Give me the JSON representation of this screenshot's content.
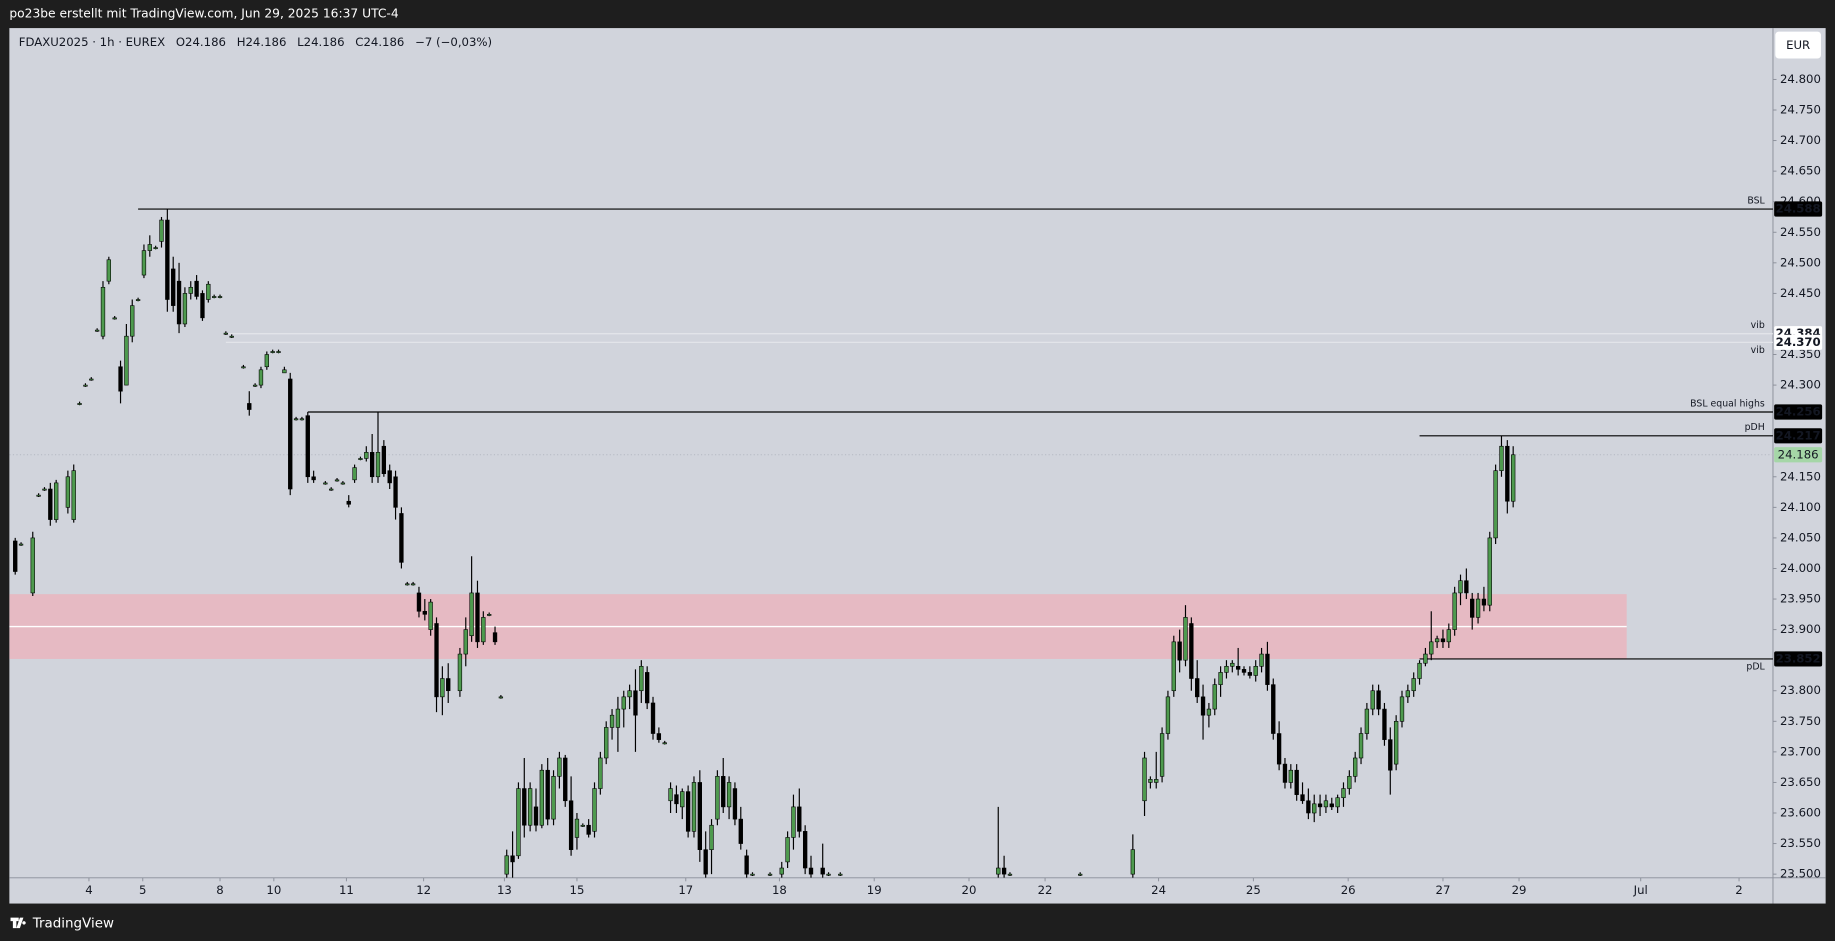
{
  "top_bar": {
    "text": "po23be erstellt mit TradingView.com, Jun 29, 2025 16:37 UTC-4"
  },
  "footer": {
    "brand": "TradingView"
  },
  "currency": "EUR",
  "chart_data": {
    "type": "candlestick",
    "symbol": "FDAXU2025 · 1h · EUREX",
    "ohlc": [
      "O24.186",
      "H24.186",
      "L24.186",
      "C24.186"
    ],
    "change": "−7 (−0,03%)",
    "up_color": "#4e9a4e",
    "down_color": "#000000",
    "wick_color": "#000000",
    "background": "#d1d4dc",
    "grid": false,
    "x": [
      1,
      2,
      4,
      5,
      6,
      7,
      8,
      10,
      11,
      12,
      13,
      14,
      15,
      16,
      17,
      18,
      19,
      20,
      21,
      22,
      23,
      24,
      25,
      26,
      27,
      28,
      29,
      30,
      31,
      32,
      33,
      34,
      35,
      36,
      37,
      38,
      40,
      41,
      42,
      43,
      44,
      45,
      46,
      47,
      48,
      49,
      50,
      51,
      52,
      54,
      55,
      56,
      57,
      58,
      59,
      60,
      61,
      62,
      63,
      64,
      65,
      66,
      67,
      68,
      69,
      70,
      71,
      72,
      73,
      74,
      75,
      77,
      78,
      79,
      80,
      81,
      82,
      83,
      84,
      85,
      86,
      87,
      88,
      89,
      90,
      91,
      92,
      93,
      94,
      95,
      96,
      97,
      98,
      99,
      100,
      101,
      102,
      103,
      104,
      105,
      106,
      107,
      108,
      109,
      110,
      111,
      112,
      113,
      114,
      115,
      116,
      117,
      118,
      119,
      120,
      121,
      122,
      123,
      124,
      125,
      126,
      127,
      130,
      132,
      133,
      134,
      135,
      136,
      137,
      139,
      140,
      142,
      169,
      170,
      171,
      183,
      192,
      194,
      195,
      196,
      197,
      198,
      199,
      200,
      201,
      202,
      203,
      204,
      205,
      206,
      207,
      208,
      209,
      210,
      211,
      212,
      213,
      214,
      215,
      216,
      217,
      218,
      219,
      220,
      221,
      222,
      223,
      224,
      225,
      226,
      227,
      228,
      229,
      230,
      231,
      232,
      233,
      234,
      235,
      236,
      237,
      238,
      239,
      240,
      241,
      242,
      243,
      244,
      245,
      246,
      247,
      248,
      249,
      250,
      251,
      252,
      253,
      254,
      255,
      256,
      257
    ],
    "open": [
      24045,
      24040,
      23960,
      24120,
      24130,
      24130,
      24080,
      24100,
      24080,
      24270,
      24300,
      24310,
      24390,
      24380,
      24470,
      24410,
      24330,
      24300,
      24380,
      24440,
      24480,
      24520,
      24525,
      24535,
      24570,
      24490,
      24470,
      24400,
      24450,
      24470,
      24450,
      24440,
      24445,
      24445,
      24385,
      24380,
      24330,
      24270,
      24300,
      24300,
      24330,
      24355,
      24355,
      24320,
      24310,
      24245,
      24245,
      24250,
      24150,
      24140,
      24130,
      24145,
      24140,
      24110,
      24145,
      24180,
      24180,
      24190,
      24150,
      24200,
      24160,
      24150,
      24090,
      23975,
      23975,
      23960,
      23930,
      23900,
      23910,
      23790,
      23820,
      23800,
      23860,
      23890,
      23960,
      23880,
      23925,
      23895,
      23790,
      23500,
      23530,
      23530,
      23640,
      23580,
      23610,
      23580,
      23670,
      23590,
      23660,
      23690,
      23620,
      23560,
      23580,
      23580,
      23570,
      23640,
      23690,
      23740,
      23740,
      23770,
      23790,
      23800,
      23800,
      23830,
      23780,
      23730,
      23715,
      23620,
      23630,
      23610,
      23635,
      23570,
      23650,
      23540,
      23540,
      23590,
      23660,
      23610,
      23640,
      23590,
      23530,
      23500,
      23500,
      23500,
      23520,
      23560,
      23610,
      23570,
      23510,
      23510,
      23500,
      23500,
      23500,
      23510,
      23500,
      23500,
      23500,
      23620,
      23650,
      23650,
      23660,
      23730,
      23800,
      23880,
      23850,
      23910,
      23820,
      23790,
      23760,
      23770,
      23810,
      23830,
      23840,
      23840,
      23835,
      23830,
      23825,
      23840,
      23860,
      23810,
      23730,
      23680,
      23650,
      23670,
      23630,
      23620,
      23600,
      23615,
      23610,
      23615,
      23610,
      23625,
      23640,
      23660,
      23690,
      23730,
      23770,
      23800,
      23770,
      23720,
      23680,
      23750,
      23790,
      23800,
      23820,
      23845,
      23860,
      23880,
      23885,
      23880,
      23900,
      23960,
      23980,
      23950,
      23920,
      23950,
      23940,
      24050,
      24160,
      24200,
      24110
    ],
    "high": [
      24050,
      24043,
      24060,
      24123,
      24133,
      24140,
      24145,
      24160,
      24170,
      24273,
      24303,
      24313,
      24393,
      24470,
      24510,
      24413,
      24340,
      24400,
      24440,
      24443,
      24530,
      24545,
      24528,
      24575,
      24588,
      24510,
      24500,
      24460,
      24470,
      24480,
      24455,
      24470,
      24448,
      24448,
      24388,
      24383,
      24333,
      24290,
      24303,
      24330,
      24355,
      24358,
      24358,
      24330,
      24320,
      24248,
      24248,
      24256,
      24160,
      24143,
      24133,
      24148,
      24143,
      24120,
      24170,
      24183,
      24200,
      24220,
      24256,
      24210,
      24170,
      24160,
      24100,
      23978,
      23978,
      23970,
      23950,
      23950,
      23920,
      23840,
      23845,
      23870,
      23920,
      24020,
      23980,
      23930,
      23928,
      23905,
      23793,
      23540,
      23570,
      23650,
      23690,
      23650,
      23640,
      23680,
      23690,
      23670,
      23700,
      23695,
      23660,
      23600,
      23583,
      23590,
      23650,
      23700,
      23750,
      23770,
      23790,
      23800,
      23810,
      23835,
      23850,
      23840,
      23790,
      23740,
      23718,
      23650,
      23645,
      23640,
      23645,
      23660,
      23670,
      23570,
      23590,
      23670,
      23690,
      23660,
      23650,
      23610,
      23540,
      23503,
      23503,
      23520,
      23570,
      23630,
      23640,
      23580,
      23530,
      23550,
      23503,
      23503,
      23610,
      23530,
      23503,
      23503,
      23565,
      23700,
      23660,
      23700,
      23740,
      23800,
      23890,
      23900,
      23940,
      23920,
      23850,
      23810,
      23780,
      23820,
      23840,
      23850,
      23850,
      23870,
      23840,
      23840,
      23850,
      23870,
      23880,
      23820,
      23750,
      23690,
      23680,
      23680,
      23650,
      23640,
      23630,
      23630,
      23630,
      23625,
      23630,
      23650,
      23670,
      23700,
      23740,
      23780,
      23810,
      23810,
      23780,
      23740,
      23760,
      23800,
      23810,
      23830,
      23850,
      23870,
      23930,
      23890,
      23900,
      23910,
      23970,
      23990,
      24000,
      23960,
      23960,
      23970,
      24060,
      24170,
      24217,
      24210,
      24200
    ],
    "low": [
      23990,
      24037,
      23955,
      24117,
      24127,
      24070,
      24075,
      24090,
      24075,
      24267,
      24297,
      24307,
      24387,
      24375,
      24465,
      24407,
      24270,
      24300,
      24370,
      24437,
      24475,
      24510,
      24522,
      24525,
      24420,
      24420,
      24385,
      24395,
      24440,
      24440,
      24405,
      24435,
      24442,
      24442,
      24382,
      24377,
      24327,
      24250,
      24297,
      24295,
      24325,
      24352,
      24352,
      24320,
      24120,
      24242,
      24242,
      24140,
      24140,
      24137,
      24127,
      24142,
      24137,
      24100,
      24140,
      24177,
      24175,
      24140,
      24140,
      24150,
      24130,
      24080,
      24000,
      23972,
      23972,
      23920,
      23915,
      23890,
      23765,
      23760,
      23780,
      23790,
      23840,
      23880,
      23870,
      23875,
      23922,
      23875,
      23787,
      23494,
      23494,
      23525,
      23560,
      23570,
      23570,
      23575,
      23580,
      23580,
      23640,
      23610,
      23530,
      23540,
      23577,
      23560,
      23560,
      23630,
      23680,
      23720,
      23700,
      23740,
      23770,
      23700,
      23780,
      23770,
      23720,
      23715,
      23712,
      23600,
      23600,
      23590,
      23560,
      23560,
      23520,
      23494,
      23500,
      23580,
      23600,
      23590,
      23580,
      23540,
      23494,
      23497,
      23497,
      23494,
      23510,
      23540,
      23560,
      23500,
      23494,
      23494,
      23497,
      23497,
      23494,
      23494,
      23497,
      23497,
      23494,
      23595,
      23640,
      23640,
      23650,
      23720,
      23790,
      23830,
      23840,
      23800,
      23780,
      23720,
      23740,
      23760,
      23790,
      23820,
      23830,
      23825,
      23825,
      23820,
      23815,
      23830,
      23800,
      23720,
      23670,
      23640,
      23640,
      23620,
      23615,
      23590,
      23585,
      23595,
      23600,
      23605,
      23600,
      23610,
      23630,
      23650,
      23680,
      23720,
      23760,
      23760,
      23710,
      23630,
      23670,
      23740,
      23780,
      23790,
      23810,
      23840,
      23850,
      23870,
      23870,
      23870,
      23890,
      23940,
      23950,
      23900,
      23910,
      23930,
      23930,
      24040,
      24150,
      24090,
      24100
    ],
    "close": [
      23995,
      24040,
      24050,
      24120,
      24130,
      24080,
      24140,
      24150,
      24160,
      24270,
      24300,
      24310,
      24390,
      24460,
      24505,
      24410,
      24290,
      24380,
      24430,
      24440,
      24520,
      24530,
      24525,
      24570,
      24440,
      24430,
      24400,
      24450,
      24460,
      24445,
      24410,
      24465,
      24445,
      24445,
      24385,
      24380,
      24330,
      24260,
      24300,
      24325,
      24350,
      24355,
      24355,
      24325,
      24130,
      24245,
      24245,
      24150,
      24145,
      24140,
      24130,
      24145,
      24140,
      24105,
      24165,
      24180,
      24190,
      24150,
      24190,
      24155,
      24140,
      24100,
      24010,
      23975,
      23975,
      23930,
      23925,
      23945,
      23790,
      23820,
      23800,
      23860,
      23900,
      23960,
      23880,
      23920,
      23925,
      23880,
      23790,
      23530,
      23520,
      23640,
      23580,
      23640,
      23580,
      23670,
      23590,
      23660,
      23690,
      23620,
      23540,
      23590,
      23580,
      23565,
      23640,
      23690,
      23740,
      23760,
      23770,
      23790,
      23800,
      23760,
      23840,
      23780,
      23730,
      23720,
      23715,
      23640,
      23615,
      23635,
      23570,
      23650,
      23540,
      23500,
      23580,
      23660,
      23610,
      23650,
      23590,
      23550,
      23500,
      23500,
      23500,
      23510,
      23560,
      23610,
      23570,
      23510,
      23500,
      23500,
      23500,
      23500,
      23510,
      23500,
      23500,
      23500,
      23540,
      23690,
      23655,
      23655,
      23730,
      23790,
      23880,
      23850,
      23920,
      23820,
      23790,
      23760,
      23770,
      23810,
      23830,
      23840,
      23845,
      23835,
      23830,
      23825,
      23840,
      23860,
      23810,
      23730,
      23680,
      23650,
      23670,
      23630,
      23620,
      23600,
      23615,
      23610,
      23620,
      23610,
      23625,
      23640,
      23660,
      23690,
      23730,
      23770,
      23800,
      23770,
      23720,
      23670,
      23750,
      23790,
      23800,
      23820,
      23845,
      23860,
      23880,
      23885,
      23880,
      23900,
      23960,
      23980,
      23960,
      23920,
      23950,
      23940,
      24050,
      24160,
      24200,
      24110,
      24186
    ],
    "xlim": [
      0,
      301.4
    ],
    "xticks": [
      {
        "value": 13.6,
        "label": "4"
      },
      {
        "value": 22.8,
        "label": "5"
      },
      {
        "value": 36,
        "label": "8"
      },
      {
        "value": 45.2,
        "label": "10"
      },
      {
        "value": 57.6,
        "label": "11"
      },
      {
        "value": 70.8,
        "label": "12"
      },
      {
        "value": 84.6,
        "label": "13"
      },
      {
        "value": 97,
        "label": "15"
      },
      {
        "value": 115.6,
        "label": "17"
      },
      {
        "value": 131.6,
        "label": "18"
      },
      {
        "value": 147.8,
        "label": "19"
      },
      {
        "value": 164,
        "label": "20"
      },
      {
        "value": 177,
        "label": "22"
      },
      {
        "value": 196.4,
        "label": "24"
      },
      {
        "value": 212.6,
        "label": "25"
      },
      {
        "value": 228.8,
        "label": "26"
      },
      {
        "value": 245,
        "label": "27"
      },
      {
        "value": 258,
        "label": "29"
      },
      {
        "value": 278.8,
        "label": "Jul"
      },
      {
        "value": 295.6,
        "label": "2"
      }
    ],
    "ylim": [
      23494,
      24884
    ],
    "yticks": [
      {
        "value": 24800,
        "label": "24.800"
      },
      {
        "value": 24750,
        "label": "24.750"
      },
      {
        "value": 24700,
        "label": "24.700"
      },
      {
        "value": 24650,
        "label": "24.650"
      },
      {
        "value": 24600,
        "label": "24.600"
      },
      {
        "value": 24550,
        "label": "24.550"
      },
      {
        "value": 24500,
        "label": "24.500"
      },
      {
        "value": 24450,
        "label": "24.450"
      },
      {
        "value": 24350,
        "label": "24.350"
      },
      {
        "value": 24300,
        "label": "24.300"
      },
      {
        "value": 24150,
        "label": "24.150"
      },
      {
        "value": 24100,
        "label": "24.100"
      },
      {
        "value": 24050,
        "label": "24.050"
      },
      {
        "value": 24000,
        "label": "24.000"
      },
      {
        "value": 23950,
        "label": "23.950"
      },
      {
        "value": 23900,
        "label": "23.900"
      },
      {
        "value": 23800,
        "label": "23.800"
      },
      {
        "value": 23750,
        "label": "23.750"
      },
      {
        "value": 23700,
        "label": "23.700"
      },
      {
        "value": 23650,
        "label": "23.650"
      },
      {
        "value": 23600,
        "label": "23.600"
      },
      {
        "value": 23550,
        "label": "23.550"
      },
      {
        "value": 23500,
        "label": "23.500"
      }
    ],
    "zone": {
      "top": 23958,
      "bottom": 23852,
      "mid": 23905,
      "end": 276.4,
      "color": "#e6bac3",
      "mid_color": "#ffffff"
    },
    "levels": [
      {
        "name": "BSL",
        "value": 24588,
        "value_label": "24.588",
        "start": 22,
        "line_color": "#000000",
        "label_color": "#000000",
        "box_color": "#000000",
        "box_text_color": "#ffffff",
        "label_side": "above"
      },
      {
        "name": "vib",
        "value": 24384,
        "value_label": "24.384",
        "start": 37,
        "line_color": "#e4e6eb",
        "label_color": "#7f9fe0",
        "box_color": "#ffffff",
        "box_text_color": "#000000",
        "label_side": "above"
      },
      {
        "name": "vib",
        "value": 24370,
        "value_label": "24.370",
        "start": 37,
        "line_color": "#e4e6eb",
        "label_color": "#7f9fe0",
        "box_color": "#ffffff",
        "box_text_color": "#000000",
        "label_side": "below"
      },
      {
        "name": "BSL equal highs",
        "value": 24256,
        "value_label": "24.256",
        "start": 51,
        "line_color": "#000000",
        "label_color": "#000000",
        "box_color": "#000000",
        "box_text_color": "#ffffff",
        "label_side": "above"
      },
      {
        "name": "pDH",
        "value": 24217,
        "value_label": "24.217",
        "start": 241,
        "line_color": "#000000",
        "label_color": "#000000",
        "box_color": "#000000",
        "box_text_color": "#ffffff",
        "label_side": "above"
      },
      {
        "name": "pDL",
        "value": 23852,
        "value_label": "23.852",
        "start": 241,
        "line_color": "#000000",
        "label_color": "#000000",
        "box_color": "#000000",
        "box_text_color": "#ffffff",
        "label_side": "below"
      }
    ],
    "last_price": {
      "value": 24186,
      "value_label": "24.186",
      "box_color": "#a5d6a7",
      "text_color": "#1b3b1b",
      "line_color": "#b4b8c2"
    }
  }
}
